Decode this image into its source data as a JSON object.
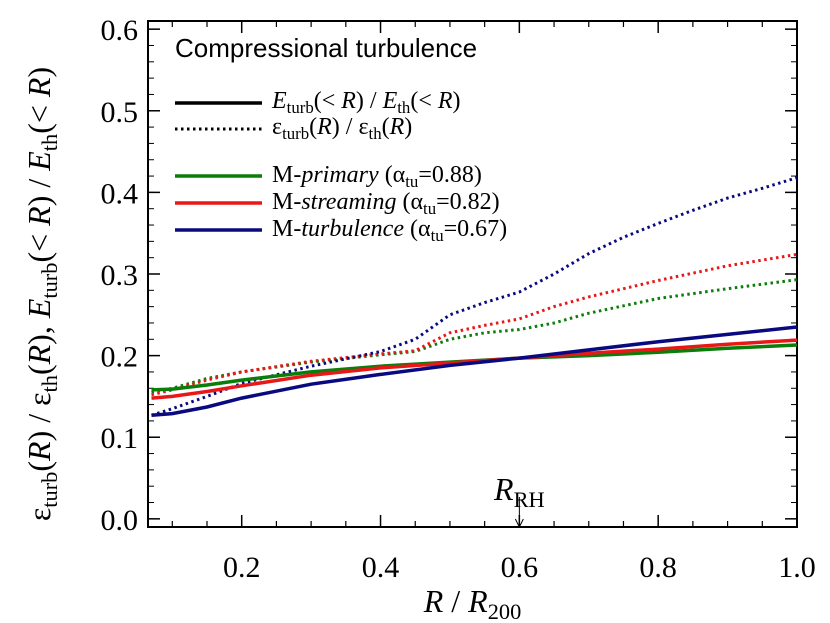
{
  "chart_data": {
    "type": "line",
    "title": "Compressional turbulence",
    "xlabel": "R / R200",
    "ylabel": "ε_turb(R) / ε_th(R), E_turb(< R) / E_th(< R)",
    "xlim": [
      0.065,
      1.0
    ],
    "ylim": [
      -0.01,
      0.61
    ],
    "x_ticks": [
      "0.2",
      "0.4",
      "0.6",
      "0.8",
      "1.0"
    ],
    "y_ticks": [
      "0.0",
      "0.1",
      "0.2",
      "0.3",
      "0.4",
      "0.5",
      "0.6"
    ],
    "grid": false,
    "legend_position": "top-left",
    "linestyle_legend": [
      {
        "style": "solid",
        "text": "E_turb(< R) / E_th(< R)"
      },
      {
        "style": "dotted",
        "text": "ε_turb(R) / ε_th(R)"
      }
    ],
    "annotation": {
      "text": "R_RH",
      "x": 0.6
    },
    "series": [
      {
        "name": "M-primary (α_tu=0.88)",
        "color": "#0a7d0a",
        "solid": {
          "x": [
            0.07,
            0.1,
            0.15,
            0.2,
            0.3,
            0.4,
            0.5,
            0.6,
            0.7,
            0.8,
            0.9,
            1.0
          ],
          "y": [
            0.158,
            0.159,
            0.164,
            0.17,
            0.18,
            0.187,
            0.192,
            0.197,
            0.2,
            0.204,
            0.209,
            0.213
          ]
        },
        "dotted": {
          "x": [
            0.07,
            0.1,
            0.15,
            0.2,
            0.3,
            0.4,
            0.45,
            0.5,
            0.55,
            0.6,
            0.65,
            0.7,
            0.8,
            0.9,
            1.0
          ],
          "y": [
            0.155,
            0.16,
            0.172,
            0.18,
            0.192,
            0.201,
            0.205,
            0.22,
            0.228,
            0.232,
            0.24,
            0.252,
            0.27,
            0.282,
            0.293
          ]
        }
      },
      {
        "name": "M-streaming (α_tu=0.82)",
        "color": "#e81818",
        "solid": {
          "x": [
            0.07,
            0.1,
            0.15,
            0.2,
            0.3,
            0.4,
            0.5,
            0.6,
            0.7,
            0.8,
            0.9,
            1.0
          ],
          "y": [
            0.148,
            0.15,
            0.156,
            0.163,
            0.176,
            0.185,
            0.191,
            0.197,
            0.203,
            0.208,
            0.214,
            0.219
          ]
        },
        "dotted": {
          "x": [
            0.07,
            0.1,
            0.15,
            0.2,
            0.3,
            0.4,
            0.45,
            0.5,
            0.55,
            0.6,
            0.65,
            0.7,
            0.8,
            0.9,
            1.0
          ],
          "y": [
            0.152,
            0.158,
            0.17,
            0.18,
            0.193,
            0.202,
            0.206,
            0.228,
            0.237,
            0.245,
            0.26,
            0.272,
            0.292,
            0.31,
            0.324
          ]
        }
      },
      {
        "name": "M-turbulence (α_tu=0.67)",
        "color": "#0a0a80",
        "solid": {
          "x": [
            0.07,
            0.1,
            0.15,
            0.2,
            0.3,
            0.4,
            0.5,
            0.6,
            0.7,
            0.8,
            0.9,
            1.0
          ],
          "y": [
            0.127,
            0.129,
            0.137,
            0.148,
            0.165,
            0.177,
            0.188,
            0.197,
            0.207,
            0.217,
            0.226,
            0.235
          ]
        },
        "dotted": {
          "x": [
            0.07,
            0.1,
            0.15,
            0.2,
            0.3,
            0.4,
            0.45,
            0.5,
            0.55,
            0.6,
            0.65,
            0.7,
            0.75,
            0.8,
            0.85,
            0.9,
            0.95,
            1.0
          ],
          "y": [
            0.127,
            0.135,
            0.15,
            0.166,
            0.187,
            0.205,
            0.22,
            0.25,
            0.265,
            0.278,
            0.3,
            0.325,
            0.345,
            0.362,
            0.378,
            0.393,
            0.405,
            0.418
          ]
        }
      }
    ]
  }
}
